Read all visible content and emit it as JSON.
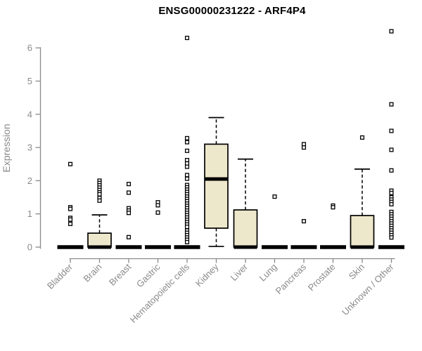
{
  "chart_data": {
    "type": "boxplot",
    "title": "ENSG00000231222 - ARF4P4",
    "ylabel": "Expression",
    "xlabel": "",
    "ylim": [
      0,
      6.6
    ],
    "yticks": [
      0,
      1,
      2,
      3,
      4,
      5,
      6
    ],
    "grid": false,
    "legend": "none",
    "box_fill": "#EDE7CC",
    "box_stroke": "#000000",
    "axis_color": "#8a8a8a",
    "label_color": "#8a8a8a",
    "outlier_marker": "open-square",
    "categories": [
      "Bladder",
      "Brain",
      "Breast",
      "Gastric",
      "Hematopoietic cells",
      "Kidney",
      "Liver",
      "Lung",
      "Pancreas",
      "Prostate",
      "Skin",
      "Unknown / Other"
    ],
    "boxes": [
      {
        "category": "Bladder",
        "q1": 0,
        "median": 0,
        "q3": 0,
        "whisker_low": 0,
        "whisker_high": 0,
        "outliers": [
          2.5,
          1.2,
          1.15,
          0.88,
          0.83,
          0.7
        ]
      },
      {
        "category": "Brain",
        "q1": 0,
        "median": 0,
        "q3": 0.42,
        "whisker_low": 0,
        "whisker_high": 0.97,
        "outliers": [
          2.0,
          1.93,
          1.86,
          1.79,
          1.72,
          1.65,
          1.59,
          1.48,
          1.4
        ]
      },
      {
        "category": "Breast",
        "q1": 0,
        "median": 0,
        "q3": 0,
        "whisker_low": 0,
        "whisker_high": 0,
        "outliers": [
          1.9,
          1.64,
          1.17,
          1.1,
          1.03,
          0.3
        ]
      },
      {
        "category": "Gastric",
        "q1": 0,
        "median": 0,
        "q3": 0,
        "whisker_low": 0,
        "whisker_high": 0,
        "outliers": [
          1.35,
          1.26,
          1.04
        ]
      },
      {
        "category": "Hematopoietic cells",
        "q1": 0,
        "median": 0,
        "q3": 0,
        "whisker_low": 0,
        "whisker_high": 0,
        "outliers": [
          6.3,
          3.28,
          3.16,
          2.9,
          2.62,
          2.52,
          2.42,
          2.17,
          2.06,
          1.87,
          1.8,
          1.73,
          1.66,
          1.59,
          1.52,
          1.45,
          1.38,
          1.31,
          1.24,
          1.17,
          1.1,
          1.03,
          0.96,
          0.89,
          0.82,
          0.75,
          0.68,
          0.61,
          0.5,
          0.43,
          0.36,
          0.29,
          0.22,
          0.15
        ]
      },
      {
        "category": "Kidney",
        "q1": 0.57,
        "median": 2.05,
        "q3": 3.1,
        "whisker_low": 0.02,
        "whisker_high": 3.9,
        "outliers": []
      },
      {
        "category": "Liver",
        "q1": 0,
        "median": 0,
        "q3": 1.12,
        "whisker_low": 0,
        "whisker_high": 2.65,
        "outliers": []
      },
      {
        "category": "Lung",
        "q1": 0,
        "median": 0,
        "q3": 0,
        "whisker_low": 0,
        "whisker_high": 0,
        "outliers": [
          1.52
        ]
      },
      {
        "category": "Pancreas",
        "q1": 0,
        "median": 0,
        "q3": 0,
        "whisker_low": 0,
        "whisker_high": 0,
        "outliers": [
          3.1,
          3.0,
          0.78
        ]
      },
      {
        "category": "Prostate",
        "q1": 0,
        "median": 0,
        "q3": 0,
        "whisker_low": 0,
        "whisker_high": 0,
        "outliers": [
          1.25,
          1.2
        ]
      },
      {
        "category": "Skin",
        "q1": 0,
        "median": 0,
        "q3": 0.95,
        "whisker_low": 0,
        "whisker_high": 2.35,
        "outliers": [
          3.3
        ]
      },
      {
        "category": "Unknown / Other",
        "q1": 0,
        "median": 0,
        "q3": 0,
        "whisker_low": 0,
        "whisker_high": 0,
        "outliers": [
          6.5,
          4.3,
          3.5,
          2.93,
          2.31,
          1.7,
          1.63,
          1.5,
          1.43,
          1.36,
          1.29,
          1.06,
          0.99,
          0.92,
          0.85,
          0.78,
          0.71,
          0.64,
          0.57,
          0.5,
          0.43,
          0.36,
          0.29
        ]
      }
    ]
  }
}
